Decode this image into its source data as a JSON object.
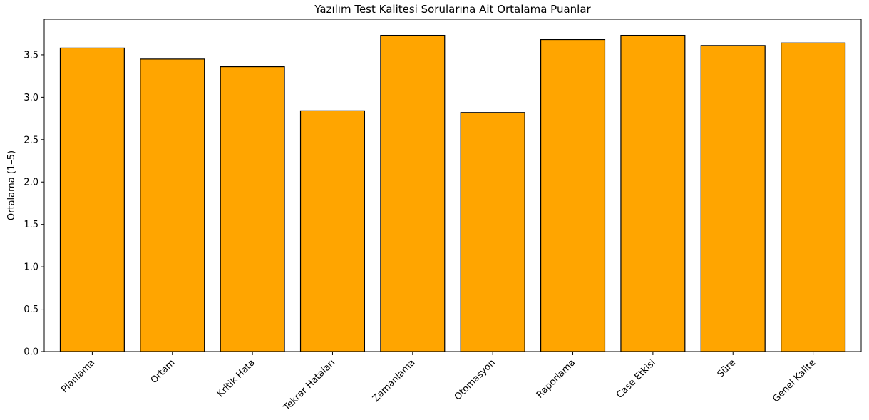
{
  "chart_data": {
    "type": "bar",
    "title": "Yazılım Test Kalitesi Sorularına Ait Ortalama Puanlar",
    "xlabel": "",
    "ylabel": "Ortalama (1–5)",
    "categories": [
      "Planlama",
      "Ortam",
      "Kritik Hata",
      "Tekrar Hataları",
      "Zamanlama",
      "Otomasyon",
      "Raporlama",
      "Case Etkisi",
      "Süre",
      "Genel Kalite"
    ],
    "values": [
      3.58,
      3.45,
      3.36,
      2.84,
      3.73,
      2.82,
      3.68,
      3.73,
      3.61,
      3.64
    ],
    "ylim": [
      0,
      3.92
    ],
    "yticks": [
      "0.0",
      "0.5",
      "1.0",
      "1.5",
      "2.0",
      "2.5",
      "3.0",
      "3.5"
    ],
    "bar_color": "#FFA500",
    "edge_color": "#000000",
    "grid": false
  }
}
